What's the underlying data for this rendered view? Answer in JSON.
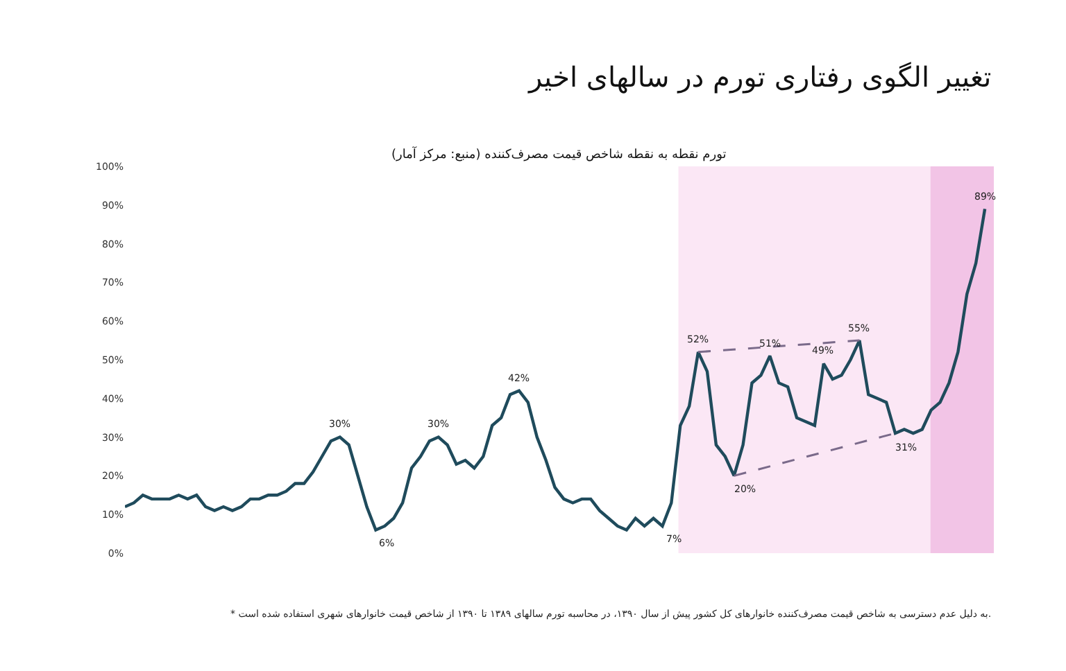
{
  "chart_data": {
    "type": "line",
    "title": "تغییر الگوی رفتاری تورم در سالهای اخیر",
    "subtitle": "تورم نقطه به نقطه شاخص قیمت مصرف‌کننده (منبع: مرکز آمار)",
    "categories": [
      null,
      null,
      null,
      null,
      null,
      null,
      null,
      null,
      null,
      null,
      null,
      null,
      null,
      null,
      null,
      null,
      null,
      null,
      null,
      null,
      null,
      null,
      null,
      null,
      null,
      null,
      null,
      null,
      null,
      null,
      null,
      null,
      null,
      null,
      null,
      null,
      null,
      null,
      null,
      null,
      null,
      null,
      null,
      null,
      null,
      null,
      null,
      null,
      null,
      null,
      null,
      null,
      null,
      null,
      null,
      null,
      null,
      null,
      null,
      null,
      null,
      null,
      null,
      null,
      null,
      null,
      null,
      null,
      null,
      null,
      null,
      null,
      null,
      null,
      null,
      null,
      null,
      null,
      null,
      null,
      null,
      null,
      null,
      null,
      null,
      null,
      null,
      null,
      null,
      null,
      null,
      null,
      null,
      null,
      null,
      null,
      null
    ],
    "series": [
      {
        "color": "#1f4b5c",
        "values": [
          12,
          13,
          15,
          14,
          14,
          14,
          15,
          14,
          15,
          12,
          11,
          12,
          11,
          12,
          14,
          14,
          15,
          15,
          16,
          18,
          18,
          21,
          25,
          29,
          30,
          28,
          20,
          12,
          6,
          7,
          9,
          13,
          22,
          25,
          29,
          30,
          28,
          23,
          24,
          22,
          25,
          33,
          35,
          41,
          42,
          39,
          30,
          24,
          17,
          14,
          13,
          14,
          14,
          11,
          9,
          7,
          6,
          9,
          7,
          9,
          7,
          13,
          33,
          38,
          52,
          47,
          28,
          25,
          20,
          28,
          44,
          46,
          51,
          44,
          43,
          35,
          34,
          33,
          49,
          45,
          46,
          50,
          55,
          41,
          40,
          39,
          31,
          32,
          31,
          32,
          37,
          39,
          44,
          52,
          67,
          75,
          89
        ],
        "value_labels": [
          null,
          null,
          null,
          null,
          null,
          null,
          null,
          null,
          null,
          null,
          null,
          null,
          null,
          null,
          null,
          null,
          null,
          null,
          null,
          null,
          null,
          null,
          null,
          null,
          "30%",
          null,
          null,
          null,
          "6%",
          null,
          null,
          null,
          null,
          null,
          null,
          "30%",
          null,
          null,
          null,
          null,
          null,
          null,
          null,
          null,
          "42%",
          null,
          null,
          null,
          null,
          null,
          null,
          null,
          null,
          null,
          null,
          null,
          null,
          null,
          null,
          null,
          "7%",
          null,
          null,
          null,
          "52%",
          null,
          null,
          null,
          "20%",
          null,
          null,
          null,
          "51%",
          null,
          null,
          null,
          null,
          null,
          "49%",
          null,
          null,
          null,
          "55%",
          null,
          null,
          null,
          "31%",
          null,
          null,
          null,
          null,
          null,
          null,
          null,
          null,
          null,
          "89%"
        ]
      },
      {
        "type": "line",
        "line_style": "dashed",
        "color": "#7a6a8a",
        "values": [
          null,
          null,
          null,
          null,
          null,
          null,
          null,
          null,
          null,
          null,
          null,
          null,
          null,
          null,
          null,
          null,
          null,
          null,
          null,
          null,
          null,
          null,
          null,
          null,
          null,
          null,
          null,
          null,
          null,
          null,
          null,
          null,
          null,
          null,
          null,
          null,
          null,
          null,
          null,
          null,
          null,
          null,
          null,
          null,
          null,
          null,
          null,
          null,
          null,
          null,
          null,
          null,
          null,
          null,
          null,
          null,
          null,
          null,
          null,
          null,
          null,
          null,
          null,
          null,
          52,
          null,
          null,
          null,
          null,
          null,
          null,
          null,
          null,
          null,
          null,
          null,
          null,
          null,
          null,
          null,
          null,
          null,
          55,
          null,
          null,
          null,
          null,
          null,
          null,
          null,
          null,
          null,
          null,
          null,
          null,
          null,
          null
        ]
      },
      {
        "type": "line",
        "line_style": "dashed",
        "color": "#7a6a8a",
        "values": [
          null,
          null,
          null,
          null,
          null,
          null,
          null,
          null,
          null,
          null,
          null,
          null,
          null,
          null,
          null,
          null,
          null,
          null,
          null,
          null,
          null,
          null,
          null,
          null,
          null,
          null,
          null,
          null,
          null,
          null,
          null,
          null,
          null,
          null,
          null,
          null,
          null,
          null,
          null,
          null,
          null,
          null,
          null,
          null,
          null,
          null,
          null,
          null,
          null,
          null,
          null,
          null,
          null,
          null,
          null,
          null,
          null,
          null,
          null,
          null,
          null,
          null,
          null,
          null,
          null,
          null,
          null,
          null,
          20,
          null,
          null,
          null,
          null,
          null,
          null,
          null,
          null,
          null,
          null,
          null,
          null,
          null,
          null,
          null,
          null,
          null,
          31,
          null,
          null,
          null,
          null,
          null,
          null,
          null,
          null,
          null,
          null
        ]
      }
    ],
    "ylim": [
      0,
      100
    ],
    "yticks": [
      {
        "value": 0,
        "label": "0%"
      },
      {
        "value": 10,
        "label": "10%"
      },
      {
        "value": 20,
        "label": "20%"
      },
      {
        "value": 30,
        "label": "30%"
      },
      {
        "value": 40,
        "label": "40%"
      },
      {
        "value": 50,
        "label": "50%"
      },
      {
        "value": 60,
        "label": "60%"
      },
      {
        "value": 70,
        "label": "70%"
      },
      {
        "value": 80,
        "label": "80%"
      },
      {
        "value": 90,
        "label": "90%"
      },
      {
        "value": 100,
        "label": "100%"
      }
    ],
    "tick_labels": "y",
    "annotations": [
      "* به دلیل عدم دسترسی به شاخص قیمت مصرف‌کننده خانوارهای کل کشور پیش از سال ۱۳۹۰، در محاسبه تورم سالهای ۱۳۸۹ تا ۱۳۹۰ از شاخص قیمت خانوارهای شهری استفاده شده است."
    ]
  }
}
